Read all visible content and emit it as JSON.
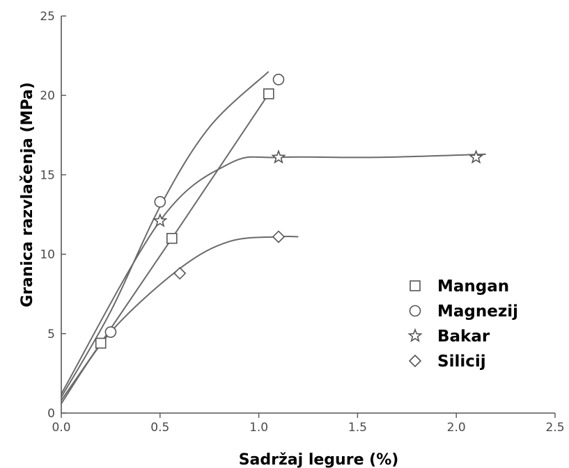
{
  "chart_data": {
    "type": "scatter",
    "xlabel": "Sadržaj legure (%)",
    "ylabel": "Granica razvlačenja (MPa)",
    "xlim": [
      0,
      2.5
    ],
    "ylim": [
      0,
      25
    ],
    "xticks": [
      0,
      0.5,
      1,
      1.5,
      2,
      2.5
    ],
    "xtick_labels": [
      "0.0",
      "0.5",
      "1.0",
      "1.5",
      "2.0",
      "2.5"
    ],
    "yticks": [
      0,
      5,
      10,
      15,
      20,
      25
    ],
    "ytick_labels": [
      "0",
      "5",
      "10",
      "15",
      "20",
      "25"
    ],
    "grid": false,
    "legend_position": "right",
    "series": [
      {
        "name": "Mangan",
        "marker": "square",
        "x": [
          0.2,
          0.56,
          1.05
        ],
        "y": [
          4.4,
          11.0,
          20.1
        ],
        "fit_x": [
          0,
          0.2,
          0.56,
          1.05
        ],
        "fit_y": [
          0.8,
          4.4,
          11.0,
          20.1
        ]
      },
      {
        "name": "Magnezij",
        "marker": "circle",
        "x": [
          0.25,
          0.5,
          1.1
        ],
        "y": [
          5.1,
          13.3,
          21.0
        ],
        "fit_x": [
          0,
          0.25,
          0.5,
          0.75,
          1.05
        ],
        "fit_y": [
          1.0,
          6.4,
          13.0,
          18.0,
          21.5
        ]
      },
      {
        "name": "Bakar",
        "marker": "star",
        "x": [
          0.5,
          1.1,
          2.1
        ],
        "y": [
          12.1,
          16.1,
          16.1
        ],
        "fit_x": [
          0,
          0.5,
          0.85,
          1.1,
          1.6,
          2.15
        ],
        "fit_y": [
          1.2,
          12.1,
          15.7,
          16.1,
          16.1,
          16.3
        ]
      },
      {
        "name": "Silicij",
        "marker": "diamond",
        "x": [
          0.6,
          1.1
        ],
        "y": [
          8.8,
          11.1
        ],
        "fit_x": [
          0,
          0.25,
          0.6,
          0.85,
          1.1,
          1.2
        ],
        "fit_y": [
          0.6,
          5.1,
          9.1,
          10.8,
          11.1,
          11.1
        ]
      }
    ]
  }
}
